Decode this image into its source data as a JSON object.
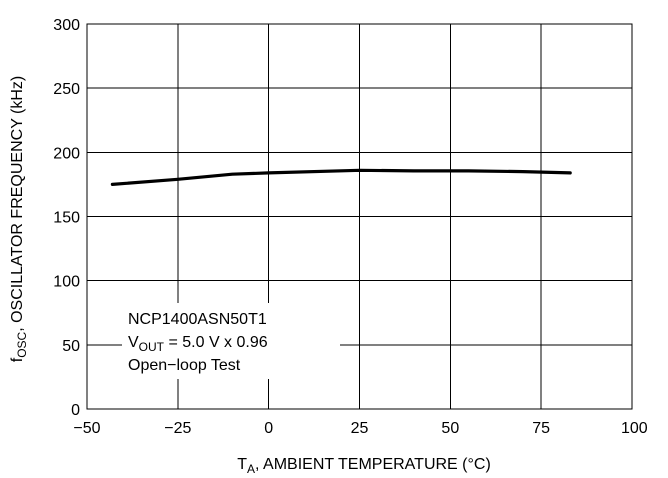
{
  "chart_data": {
    "type": "line",
    "xlabel": {
      "main": "T",
      "sub": "A",
      "rest": ", AMBIENT TEMPERATURE (°C)"
    },
    "ylabel": {
      "main": "f",
      "sub": "OSC",
      "rest": ", OSCILLATOR FREQUENCY (kHz)"
    },
    "xlim": [
      -50,
      100
    ],
    "ylim": [
      0,
      300
    ],
    "x_ticks": [
      -50,
      -25,
      0,
      25,
      50,
      75,
      100
    ],
    "x_tick_labels": [
      "−50",
      "−25",
      "0",
      "25",
      "50",
      "75",
      "100"
    ],
    "y_ticks": [
      0,
      50,
      100,
      150,
      200,
      250,
      300
    ],
    "y_tick_labels": [
      "0",
      "50",
      "100",
      "150",
      "200",
      "250",
      "300"
    ],
    "grid": true,
    "series": [
      {
        "x": [
          -43,
          -25,
          -10,
          0,
          25,
          40,
          55,
          70,
          83
        ],
        "y": [
          175,
          179,
          183,
          184,
          186,
          185.5,
          185.5,
          185,
          184
        ],
        "color": "#000000"
      }
    ],
    "annotation": {
      "line1": "NCP1400ASN50T1",
      "line2": {
        "main": "V",
        "sub": "OUT",
        "rest": " = 5.0 V x 0.96"
      },
      "line3": "Open−loop Test"
    }
  }
}
